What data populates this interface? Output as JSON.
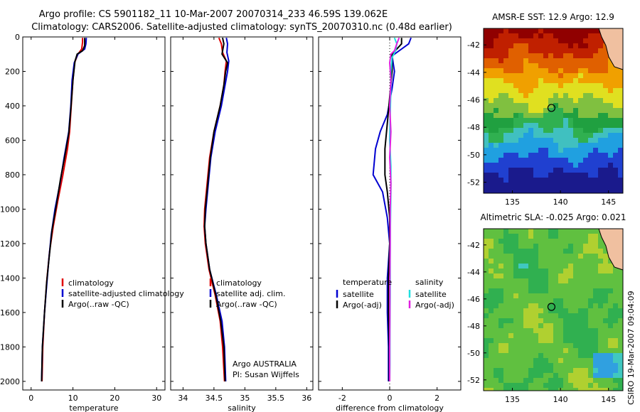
{
  "figure": {
    "title_line1": "Argo profile: CS 5901182_11 10-Mar-2007 20070314_233 46.59S 139.062E",
    "title_line2": "Climatology: CARS2006. Satellite-adjusted climatology: synTS_20070310.nc (0.48d earlier)",
    "credit": "CSIRO 19-Mar-2007 09:04:09"
  },
  "colors": {
    "climatology": "#e00000",
    "satellite": "#0000d0",
    "argo": "#000000",
    "argo_salinity": "#e020e0",
    "satellite_salinity": "#20e0e0"
  },
  "chart_data": [
    {
      "id": "temperature",
      "type": "line",
      "xlabel": "temperature",
      "ylabel": "",
      "xlim": [
        -2,
        32
      ],
      "ylim": [
        2050,
        0
      ],
      "xticks": [
        0,
        10,
        20,
        30
      ],
      "xtick_labels": [
        "0",
        "10",
        "20",
        "30"
      ],
      "yticks": [
        0,
        200,
        400,
        600,
        800,
        1000,
        1200,
        1400,
        1600,
        1800,
        2000
      ],
      "ytick_labels": [
        "0",
        "200",
        "400",
        "600",
        "800",
        "1000",
        "1200",
        "1400",
        "1600",
        "1800",
        "2000"
      ],
      "legend": {
        "position": "lower-right",
        "entries": [
          "climatology",
          "satellite-adjusted climatology",
          "Argo(..raw -QC)"
        ]
      },
      "series": [
        {
          "name": "climatology",
          "color": "#e00000",
          "points": [
            [
              12.3,
              5
            ],
            [
              12.3,
              30
            ],
            [
              12.1,
              70
            ],
            [
              11.2,
              100
            ],
            [
              10.4,
              150
            ],
            [
              10,
              250
            ],
            [
              9.6,
              400
            ],
            [
              9.2,
              550
            ],
            [
              8.7,
              650
            ],
            [
              7.6,
              800
            ],
            [
              6.4,
              950
            ],
            [
              5.3,
              1100
            ],
            [
              4.4,
              1250
            ],
            [
              3.8,
              1400
            ],
            [
              3.2,
              1600
            ],
            [
              2.8,
              1800
            ],
            [
              2.6,
              2000
            ]
          ]
        },
        {
          "name": "satellite-adjusted climatology",
          "color": "#0000d0",
          "points": [
            [
              13.2,
              5
            ],
            [
              13.1,
              40
            ],
            [
              12.8,
              70
            ],
            [
              11.2,
              100
            ],
            [
              10.3,
              150
            ],
            [
              9.8,
              250
            ],
            [
              9.5,
              400
            ],
            [
              9,
              550
            ],
            [
              7.9,
              700
            ],
            [
              6.9,
              850
            ],
            [
              5.7,
              1000
            ],
            [
              4.8,
              1150
            ],
            [
              4.2,
              1300
            ],
            [
              3.7,
              1450
            ],
            [
              3.2,
              1600
            ],
            [
              2.7,
              1800
            ],
            [
              2.5,
              2000
            ]
          ]
        },
        {
          "name": "Argo(..raw -QC)",
          "color": "#000000",
          "points": [
            [
              12.8,
              5
            ],
            [
              12.8,
              50
            ],
            [
              12.3,
              80
            ],
            [
              11,
              100
            ],
            [
              10.5,
              140
            ],
            [
              10,
              250
            ],
            [
              9.5,
              420
            ],
            [
              9,
              560
            ],
            [
              8,
              700
            ],
            [
              7,
              830
            ],
            [
              6,
              980
            ],
            [
              5,
              1120
            ],
            [
              4.3,
              1280
            ],
            [
              3.7,
              1430
            ],
            [
              3.2,
              1600
            ],
            [
              2.7,
              1800
            ],
            [
              2.5,
              2000
            ]
          ]
        }
      ]
    },
    {
      "id": "salinity",
      "type": "line",
      "xlabel": "salinity",
      "ylabel": "",
      "xlim": [
        33.8,
        36.1
      ],
      "ylim": [
        2050,
        0
      ],
      "xticks": [
        34,
        34.5,
        35,
        35.5,
        36
      ],
      "xtick_labels": [
        "34",
        "34.5",
        "35",
        "35.5",
        "36"
      ],
      "legend": {
        "position": "lower-right",
        "entries": [
          "climatology",
          "satellite adj. clim.",
          "Argo(..raw -QC)"
        ]
      },
      "annotation_lines": [
        "Argo AUSTRALIA",
        "PI: Susan Wijffels"
      ],
      "series": [
        {
          "name": "climatology",
          "color": "#e00000",
          "points": [
            [
              34.58,
              5
            ],
            [
              34.62,
              40
            ],
            [
              34.64,
              90
            ],
            [
              34.7,
              140
            ],
            [
              34.68,
              200
            ],
            [
              34.66,
              280
            ],
            [
              34.6,
              400
            ],
            [
              34.5,
              550
            ],
            [
              34.43,
              700
            ],
            [
              34.39,
              850
            ],
            [
              34.35,
              1000
            ],
            [
              34.34,
              1100
            ],
            [
              34.36,
              1200
            ],
            [
              34.42,
              1350
            ],
            [
              34.52,
              1500
            ],
            [
              34.6,
              1650
            ],
            [
              34.64,
              1800
            ],
            [
              34.67,
              2000
            ]
          ]
        },
        {
          "name": "satellite adj. clim.",
          "color": "#0000d0",
          "points": [
            [
              34.7,
              5
            ],
            [
              34.72,
              40
            ],
            [
              34.71,
              90
            ],
            [
              34.74,
              140
            ],
            [
              34.72,
              200
            ],
            [
              34.68,
              280
            ],
            [
              34.62,
              400
            ],
            [
              34.52,
              550
            ],
            [
              34.45,
              700
            ],
            [
              34.41,
              850
            ],
            [
              34.37,
              1000
            ],
            [
              34.35,
              1100
            ],
            [
              34.37,
              1200
            ],
            [
              34.43,
              1350
            ],
            [
              34.54,
              1500
            ],
            [
              34.63,
              1650
            ],
            [
              34.67,
              1800
            ],
            [
              34.69,
              2000
            ]
          ]
        },
        {
          "name": "Argo(..raw -QC)",
          "color": "#000000",
          "points": [
            [
              34.64,
              5
            ],
            [
              34.66,
              40
            ],
            [
              34.63,
              100
            ],
            [
              34.72,
              150
            ],
            [
              34.69,
              200
            ],
            [
              34.66,
              280
            ],
            [
              34.6,
              400
            ],
            [
              34.5,
              550
            ],
            [
              34.44,
              700
            ],
            [
              34.4,
              850
            ],
            [
              34.36,
              1000
            ],
            [
              34.35,
              1100
            ],
            [
              34.37,
              1200
            ],
            [
              34.43,
              1350
            ],
            [
              34.53,
              1500
            ],
            [
              34.61,
              1650
            ],
            [
              34.66,
              1800
            ],
            [
              34.68,
              2000
            ]
          ]
        }
      ]
    },
    {
      "id": "difference",
      "type": "line",
      "xlabel": "difference from climatology",
      "ylabel": "",
      "xlim": [
        -3,
        3
      ],
      "ylim": [
        2050,
        0
      ],
      "xticks": [
        -2,
        0,
        2
      ],
      "xtick_labels": [
        "-2",
        "0",
        "2"
      ],
      "legend": {
        "position": "lower",
        "groups": [
          {
            "title": "temperature",
            "entries": [
              "satellite",
              "Argo(-adj)"
            ]
          },
          {
            "title": "salinity",
            "entries": [
              "satellite",
              "Argo(-adj)"
            ]
          }
        ]
      },
      "series": [
        {
          "name": "temperature satellite",
          "color": "#0000d0",
          "points": [
            [
              0.9,
              5
            ],
            [
              0.8,
              40
            ],
            [
              0.5,
              70
            ],
            [
              0.1,
              110
            ],
            [
              0.2,
              200
            ],
            [
              0.1,
              300
            ],
            [
              -0.1,
              450
            ],
            [
              -0.4,
              550
            ],
            [
              -0.6,
              650
            ],
            [
              -0.7,
              800
            ],
            [
              -0.3,
              900
            ],
            [
              -0.1,
              1050
            ],
            [
              0,
              1200
            ],
            [
              -0.1,
              1400
            ],
            [
              -0.1,
              1600
            ],
            [
              -0.05,
              1800
            ],
            [
              -0.05,
              2000
            ]
          ]
        },
        {
          "name": "temperature Argo(-adj)",
          "color": "#000000",
          "points": [
            [
              0.5,
              5
            ],
            [
              0.5,
              40
            ],
            [
              0.3,
              70
            ],
            [
              0.1,
              100
            ],
            [
              0.1,
              200
            ],
            [
              0,
              350
            ],
            [
              -0.1,
              500
            ],
            [
              -0.2,
              650
            ],
            [
              -0.2,
              800
            ],
            [
              -0.1,
              900
            ],
            [
              0,
              1050
            ],
            [
              0,
              1200
            ],
            [
              -0.05,
              1400
            ],
            [
              -0.05,
              1600
            ],
            [
              -0.02,
              1800
            ],
            [
              -0.02,
              2000
            ]
          ]
        },
        {
          "name": "salinity satellite",
          "color": "#20e0e0",
          "points": [
            [
              0.2,
              5
            ],
            [
              0.3,
              40
            ],
            [
              0.25,
              80
            ],
            [
              0.1,
              120
            ],
            [
              0.05,
              200
            ],
            [
              0.05,
              300
            ],
            [
              0.02,
              450
            ],
            [
              0,
              600
            ],
            [
              0.05,
              750
            ],
            [
              0.05,
              900
            ],
            [
              0.03,
              1100
            ],
            [
              0.02,
              1300
            ],
            [
              0.02,
              1500
            ],
            [
              0.01,
              1700
            ],
            [
              0.01,
              1900
            ],
            [
              0,
              2000
            ]
          ]
        },
        {
          "name": "salinity Argo(-adj)",
          "color": "#e020e0",
          "points": [
            [
              0.4,
              5
            ],
            [
              0.3,
              40
            ],
            [
              0.2,
              80
            ],
            [
              0.05,
              100
            ],
            [
              0,
              150
            ],
            [
              0.05,
              250
            ],
            [
              0,
              400
            ],
            [
              0.05,
              550
            ],
            [
              0,
              700
            ],
            [
              0.05,
              850
            ],
            [
              0.02,
              1000
            ],
            [
              0.02,
              1200
            ],
            [
              0.01,
              1400
            ],
            [
              0.01,
              1600
            ],
            [
              0,
              1800
            ],
            [
              0,
              2000
            ]
          ]
        }
      ]
    },
    {
      "id": "sst_map",
      "type": "heatmap",
      "title": "AMSR-E SST: 12.9 Argo: 12.9",
      "xlim": [
        132,
        146.5
      ],
      "ylim": [
        -52.8,
        -40.8
      ],
      "xticks": [
        135,
        140,
        145
      ],
      "xtick_labels": [
        "135",
        "140",
        "145"
      ],
      "yticks": [
        -42,
        -44,
        -46,
        -48,
        -50,
        -52
      ],
      "ytick_labels": [
        "-42",
        "-44",
        "-46",
        "-48",
        "-50",
        "-52"
      ],
      "marker": {
        "lon": 139.06,
        "lat": -46.59
      },
      "colors": [
        "#1a1a8c",
        "#2040d0",
        "#20a0e0",
        "#40c0c0",
        "#30b050",
        "#20a040",
        "#80c040",
        "#e0e020",
        "#f0a000",
        "#e06000",
        "#c02000",
        "#900000"
      ],
      "land_color": "#f0c0a0"
    },
    {
      "id": "sla_map",
      "type": "heatmap",
      "title": "Altimetric SLA: -0.025 Argo: 0.021",
      "xlim": [
        132,
        146.5
      ],
      "ylim": [
        -52.8,
        -40.8
      ],
      "xticks": [
        135,
        140,
        145
      ],
      "xtick_labels": [
        "135",
        "140",
        "145"
      ],
      "yticks": [
        -42,
        -44,
        -46,
        -48,
        -50,
        -52
      ],
      "ytick_labels": [
        "-42",
        "-44",
        "-46",
        "-48",
        "-50",
        "-52"
      ],
      "marker": {
        "lon": 139.06,
        "lat": -46.59
      },
      "colors": [
        "#2050d0",
        "#30a0e0",
        "#40c8c0",
        "#30b050",
        "#60c040",
        "#b0d030",
        "#f0e020",
        "#f0a000"
      ],
      "land_color": "#f0c0a0"
    }
  ]
}
